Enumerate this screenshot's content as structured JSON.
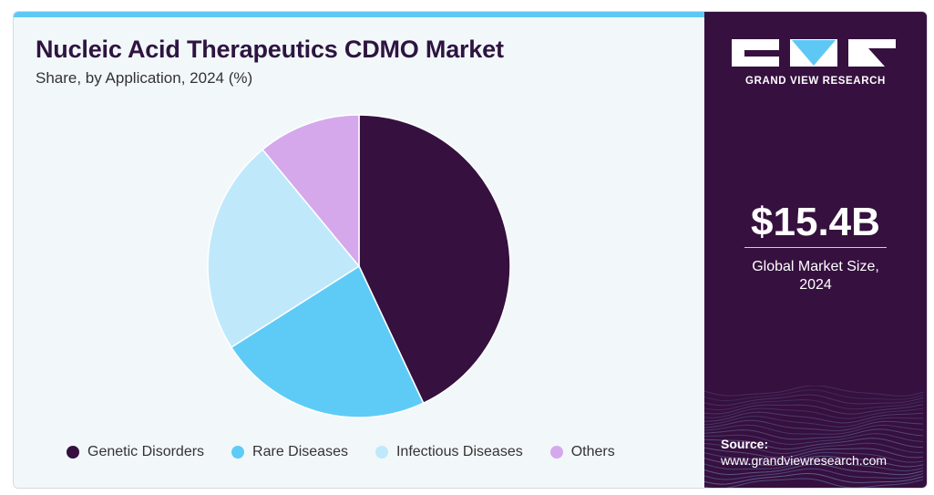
{
  "header": {
    "title": "Nucleic Acid Therapeutics CDMO Market",
    "subtitle": "Share, by Application, 2024 (%)"
  },
  "chart_data": {
    "type": "pie",
    "title": "Nucleic Acid Therapeutics CDMO Market",
    "subtitle": "Share, by Application, 2024 (%)",
    "categories": [
      "Genetic Disorders",
      "Rare Diseases",
      "Infectious Diseases",
      "Others"
    ],
    "values": [
      43,
      23,
      23,
      11
    ],
    "colors": [
      "#36103f",
      "#5ecbf6",
      "#bfe9fb",
      "#d5a8ec"
    ],
    "legend_position": "bottom",
    "start_angle_degrees": 0,
    "direction": "clockwise"
  },
  "sidebar": {
    "brand": "GRAND VIEW RESEARCH",
    "market_value": "$15.4B",
    "market_caption_line1": "Global Market Size,",
    "market_caption_line2": "2024",
    "source_label": "Source:",
    "source_url": "www.grandviewresearch.com"
  },
  "colors": {
    "sidebar_bg": "#36103f",
    "panel_bg": "#f2f7fa",
    "top_accent": "#5ec8f5",
    "title_text": "#2e1440"
  },
  "icons": {
    "logo": "grand-view-research-logo"
  }
}
